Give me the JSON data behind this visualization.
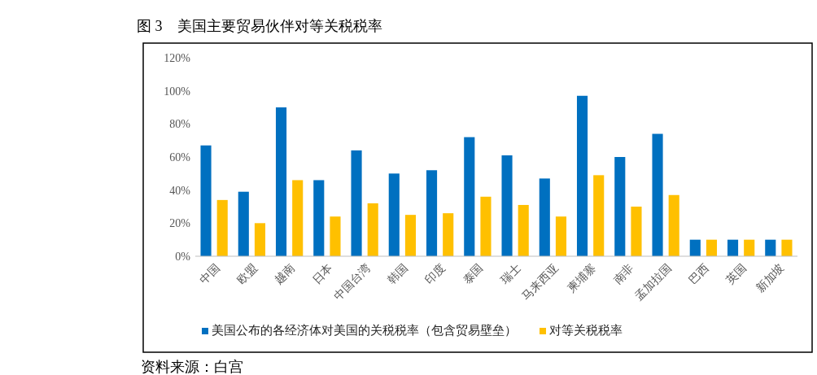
{
  "chart_data": {
    "type": "bar",
    "title": "图 3　美国主要贸易伙伴对等关税税率",
    "categories": [
      "中国",
      "欧盟",
      "越南",
      "日本",
      "中国台湾",
      "韩国",
      "印度",
      "泰国",
      "瑞士",
      "马来西亚",
      "柬埔寨",
      "南非",
      "孟加拉国",
      "巴西",
      "英国",
      "新加坡"
    ],
    "series": [
      {
        "name": "美国公布的各经济体对美国的关税税率（包含贸易壁垒）",
        "color": "#0070c0",
        "values": [
          67,
          39,
          90,
          46,
          64,
          50,
          52,
          72,
          61,
          47,
          97,
          60,
          74,
          10,
          10,
          10
        ]
      },
      {
        "name": "对等关税税率",
        "color": "#ffc000",
        "values": [
          34,
          20,
          46,
          24,
          32,
          25,
          26,
          36,
          31,
          24,
          49,
          30,
          37,
          10,
          10,
          10
        ]
      }
    ],
    "ylim": [
      0,
      120
    ],
    "yticks": [
      {
        "value": 0,
        "label": "0%"
      },
      {
        "value": 20,
        "label": "20%"
      },
      {
        "value": 40,
        "label": "40%"
      },
      {
        "value": 60,
        "label": "60%"
      },
      {
        "value": 80,
        "label": "80%"
      },
      {
        "value": 100,
        "label": "100%"
      },
      {
        "value": 120,
        "label": "120%"
      }
    ],
    "grid": false,
    "legend": "bottom",
    "annotations": [
      "资料来源：白宫"
    ]
  }
}
